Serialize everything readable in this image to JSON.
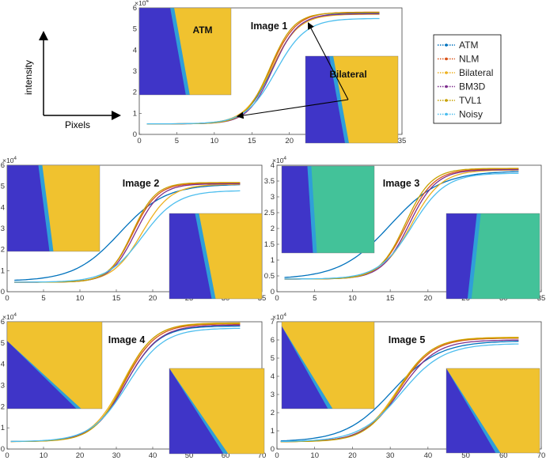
{
  "figure": {
    "axis_sketch": {
      "ylabel": "intensity",
      "xlabel": "Pixels"
    },
    "legend": {
      "entries": [
        {
          "name": "ATM",
          "color": "#0072BD"
        },
        {
          "name": "NLM",
          "color": "#D95319"
        },
        {
          "name": "Bilateral",
          "color": "#EDB120"
        },
        {
          "name": "BM3D",
          "color": "#7E2F8E"
        },
        {
          "name": "TVL1",
          "color": "#C7A100"
        },
        {
          "name": "Noisy",
          "color": "#4DBEEE"
        }
      ]
    },
    "exponent_label": "×10",
    "exponent_power": "4",
    "image_colors": {
      "dark": "#3f35c8",
      "edge": "#2f9fd8",
      "light": "#f0c22f",
      "green": "#43c299"
    }
  },
  "chart_data": [
    {
      "type": "line",
      "id": "p1",
      "title": "Image 1",
      "xlim": [
        0,
        35
      ],
      "xticks": [
        0,
        5,
        10,
        15,
        20,
        25,
        30,
        35
      ],
      "ylim": [
        0,
        6
      ],
      "yticks": [
        0,
        1,
        2,
        3,
        4,
        5,
        6
      ],
      "y_multiplier": "×10^4",
      "x": [
        1,
        32
      ],
      "series": [
        {
          "name": "ATM",
          "start": 0.5,
          "end": 5.75,
          "mid": 17.7,
          "k": 0.56
        },
        {
          "name": "NLM",
          "start": 0.5,
          "end": 5.8,
          "mid": 17.5,
          "k": 0.58
        },
        {
          "name": "Bilateral",
          "start": 0.5,
          "end": 5.7,
          "mid": 17.6,
          "k": 0.55
        },
        {
          "name": "BM3D",
          "start": 0.5,
          "end": 5.72,
          "mid": 17.8,
          "k": 0.6
        },
        {
          "name": "TVL1",
          "start": 0.5,
          "end": 5.78,
          "mid": 17.4,
          "k": 0.62
        },
        {
          "name": "Noisy",
          "start": 0.5,
          "end": 5.5,
          "mid": 18.2,
          "k": 0.5
        }
      ],
      "annotations": [
        "ATM",
        "Bilateral"
      ]
    },
    {
      "type": "line",
      "id": "p2",
      "title": "Image 2",
      "xlim": [
        0,
        35
      ],
      "xticks": [
        0,
        5,
        10,
        15,
        20,
        25,
        30,
        35
      ],
      "ylim": [
        0,
        6
      ],
      "yticks": [
        0,
        1,
        2,
        3,
        4,
        5,
        6
      ],
      "y_multiplier": "×10^4",
      "x": [
        1,
        32
      ],
      "series": [
        {
          "name": "ATM",
          "start": 0.5,
          "end": 5.1,
          "mid": 15.5,
          "k": 0.32
        },
        {
          "name": "NLM",
          "start": 0.45,
          "end": 5.15,
          "mid": 17.3,
          "k": 0.6
        },
        {
          "name": "Bilateral",
          "start": 0.45,
          "end": 5.1,
          "mid": 18.5,
          "k": 0.5
        },
        {
          "name": "BM3D",
          "start": 0.45,
          "end": 5.12,
          "mid": 17.6,
          "k": 0.58
        },
        {
          "name": "TVL1",
          "start": 0.45,
          "end": 5.18,
          "mid": 17.2,
          "k": 0.62
        },
        {
          "name": "Noisy",
          "start": 0.45,
          "end": 4.8,
          "mid": 18.6,
          "k": 0.42
        }
      ]
    },
    {
      "type": "line",
      "id": "p3",
      "title": "Image 3",
      "xlim": [
        0,
        35
      ],
      "xticks": [
        0,
        5,
        10,
        15,
        20,
        25,
        30,
        35
      ],
      "ylim": [
        0,
        4
      ],
      "yticks": [
        0,
        0.5,
        1,
        1.5,
        2,
        2.5,
        3,
        3.5,
        4
      ],
      "y_multiplier": "×10^4",
      "x": [
        1,
        32
      ],
      "series": [
        {
          "name": "ATM",
          "start": 0.4,
          "end": 3.82,
          "mid": 15.0,
          "k": 0.3
        },
        {
          "name": "NLM",
          "start": 0.4,
          "end": 3.88,
          "mid": 17.2,
          "k": 0.55
        },
        {
          "name": "Bilateral",
          "start": 0.4,
          "end": 3.85,
          "mid": 17.8,
          "k": 0.5
        },
        {
          "name": "BM3D",
          "start": 0.4,
          "end": 3.86,
          "mid": 17.5,
          "k": 0.55
        },
        {
          "name": "TVL1",
          "start": 0.4,
          "end": 3.9,
          "mid": 17.0,
          "k": 0.58
        },
        {
          "name": "Noisy",
          "start": 0.4,
          "end": 3.75,
          "mid": 17.9,
          "k": 0.45
        }
      ]
    },
    {
      "type": "line",
      "id": "p4",
      "title": "Image 4",
      "xlim": [
        0,
        70
      ],
      "xticks": [
        0,
        10,
        20,
        30,
        40,
        50,
        60,
        70
      ],
      "ylim": [
        0,
        6
      ],
      "yticks": [
        0,
        1,
        2,
        3,
        4,
        5,
        6
      ],
      "y_multiplier": "×10^4",
      "x": [
        1,
        64
      ],
      "series": [
        {
          "name": "ATM",
          "start": 0.35,
          "end": 5.8,
          "mid": 32.5,
          "k": 0.22
        },
        {
          "name": "NLM",
          "start": 0.35,
          "end": 5.9,
          "mid": 32.2,
          "k": 0.23
        },
        {
          "name": "Bilateral",
          "start": 0.35,
          "end": 5.95,
          "mid": 31.8,
          "k": 0.23
        },
        {
          "name": "BM3D",
          "start": 0.35,
          "end": 5.85,
          "mid": 32.6,
          "k": 0.22
        },
        {
          "name": "TVL1",
          "start": 0.35,
          "end": 5.92,
          "mid": 32.0,
          "k": 0.24
        },
        {
          "name": "Noisy",
          "start": 0.35,
          "end": 5.7,
          "mid": 33.0,
          "k": 0.2
        }
      ]
    },
    {
      "type": "line",
      "id": "p5",
      "title": "Image 5",
      "xlim": [
        0,
        70
      ],
      "xticks": [
        0,
        10,
        20,
        30,
        40,
        50,
        60,
        70
      ],
      "ylim": [
        0,
        7
      ],
      "yticks": [
        0,
        1,
        2,
        3,
        4,
        5,
        6,
        7
      ],
      "y_multiplier": "×10^4",
      "x": [
        1,
        64
      ],
      "series": [
        {
          "name": "ATM",
          "start": 0.4,
          "end": 5.95,
          "mid": 30.5,
          "k": 0.16
        },
        {
          "name": "NLM",
          "start": 0.4,
          "end": 6.1,
          "mid": 32.3,
          "k": 0.22
        },
        {
          "name": "Bilateral",
          "start": 0.4,
          "end": 6.15,
          "mid": 32.0,
          "k": 0.22
        },
        {
          "name": "BM3D",
          "start": 0.4,
          "end": 6.0,
          "mid": 32.6,
          "k": 0.21
        },
        {
          "name": "TVL1",
          "start": 0.4,
          "end": 6.12,
          "mid": 32.2,
          "k": 0.23
        },
        {
          "name": "Noisy",
          "start": 0.4,
          "end": 5.8,
          "mid": 33.0,
          "k": 0.18
        }
      ]
    }
  ]
}
